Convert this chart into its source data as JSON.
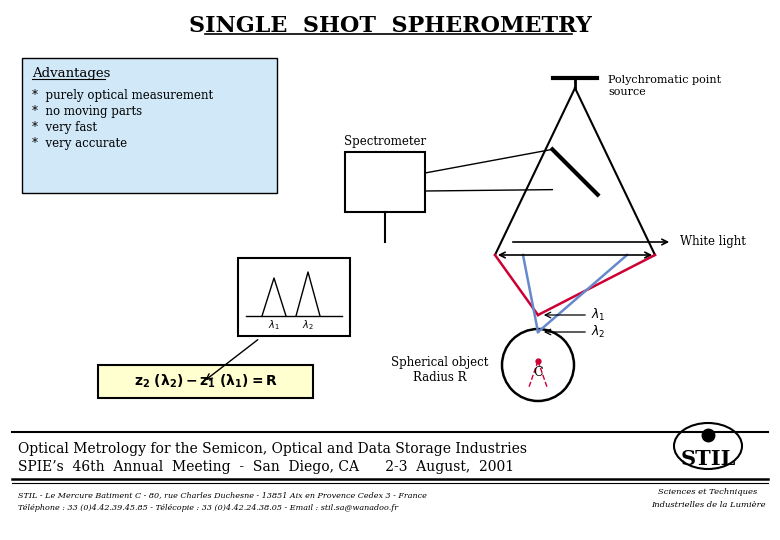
{
  "title": "SINGLE  SHOT  SPHEROMETRY",
  "bg_color": "#ffffff",
  "advantages_box_color": "#d0e8f8",
  "advantages_title": "Advantages",
  "advantages_items": [
    "purely optical measurement",
    "no moving parts",
    "very fast",
    "very accurate"
  ],
  "spectrometer_label": "Spectrometer",
  "polychromatic_label": "Polychromatic point\nsource",
  "white_light_label": "White light",
  "spherical_label": "Spherical object\nRadius R",
  "footer_line1": "Optical Metrology for the Semicon, Optical and Data Storage Industries",
  "footer_line2": "SPIE’s  46th  Annual  Meeting  -  San  Diego, CA      2-3  August,  2001",
  "footer_small1": "STIL - Le Mercure Batiment C - 80, rue Charles Duchesne - 13851 Aix en Provence Cedex 3 - France",
  "footer_small2": "Téléphone : 33 (0)4.42.39.45.85 - Télécopie : 33 (0)4.42.24.38.05 - Email : stil.sa@wanadoo.fr",
  "footer_right1": "Sciences et Techniques",
  "footer_right2": "Industrielles de la Lumière",
  "red_color": "#cc0033",
  "blue_color": "#6688cc",
  "formula_bg": "#ffffd0"
}
